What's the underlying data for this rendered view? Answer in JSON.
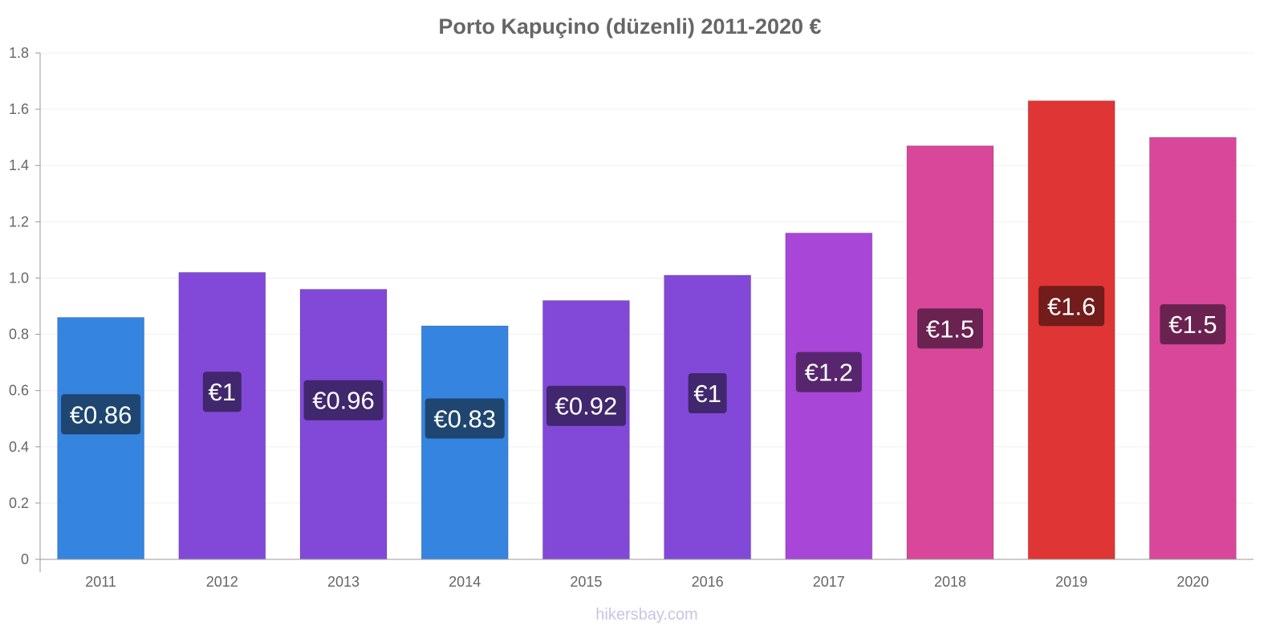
{
  "chart_data": {
    "type": "bar",
    "title": "Porto Kapuçino (düzenli) 2011-2020 €",
    "xlabel": "",
    "ylabel": "",
    "ylim": [
      0,
      1.8
    ],
    "yticks": [
      "0",
      "0.2",
      "0.4",
      "0.6",
      "0.8",
      "1.0",
      "1.2",
      "1.4",
      "1.6",
      "1.8"
    ],
    "categories": [
      "2011",
      "2012",
      "2013",
      "2014",
      "2015",
      "2016",
      "2017",
      "2018",
      "2019",
      "2020"
    ],
    "values": [
      0.86,
      1.02,
      0.96,
      0.83,
      0.92,
      1.01,
      1.16,
      1.47,
      1.63,
      1.5
    ],
    "data_labels": [
      "€0.86",
      "€1",
      "€0.96",
      "€0.83",
      "€0.92",
      "€1",
      "€1.2",
      "€1.5",
      "€1.6",
      "€1.5"
    ],
    "bar_colors": [
      "#3584e0",
      "#8249d8",
      "#8249d8",
      "#3584e0",
      "#8249d8",
      "#8249d8",
      "#a846d8",
      "#d8479a",
      "#e03535",
      "#d8479a"
    ],
    "label_colors": [
      "#1f4670",
      "#41276e",
      "#41276e",
      "#1f4670",
      "#41276e",
      "#41276e",
      "#58266f",
      "#6a2350",
      "#721c1c",
      "#6a2350"
    ],
    "grid": true,
    "legend": "none"
  },
  "watermark": "hikersbay.com"
}
